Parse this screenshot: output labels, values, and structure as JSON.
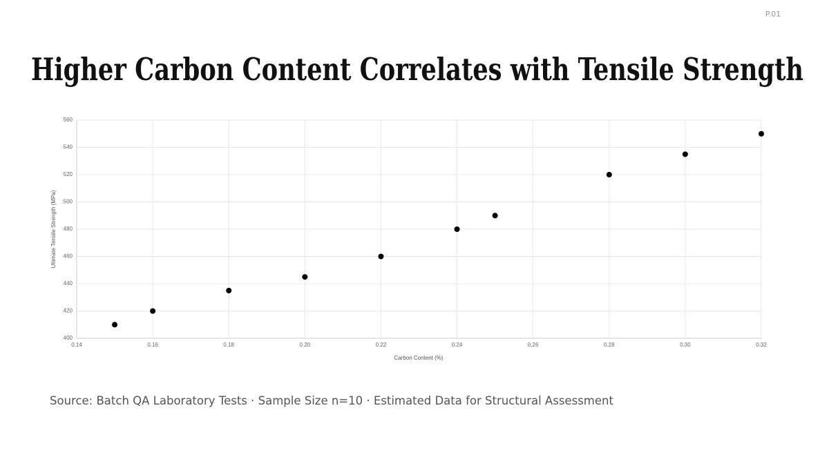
{
  "page_label": "P.01",
  "chart_data": {
    "type": "scatter",
    "title": "Higher Carbon Content Correlates with Tensile Strength",
    "x_label": "Carbon Content (%)",
    "y_label": "Ultimate Tensile Strength (MPa)",
    "source": "Source: Batch QA Laboratory Tests · Sample Size n=10 · Estimated Data for Structural Assessment",
    "x": [
      0.15,
      0.16,
      0.18,
      0.2,
      0.22,
      0.24,
      0.25,
      0.28,
      0.3,
      0.32
    ],
    "values": [
      410,
      420,
      435,
      445,
      460,
      480,
      490,
      520,
      535,
      550
    ],
    "color": "#000000",
    "xlim": [
      0.14,
      0.32
    ],
    "xticks": [
      0.14,
      0.16,
      0.18,
      {
        "value": 0.2,
        "label": "0.20"
      },
      0.22,
      0.24,
      0.26,
      0.28,
      {
        "value": 0.3,
        "label": "0.30"
      },
      0.32
    ],
    "ylim": [
      400,
      560
    ],
    "yticks": [
      400,
      420,
      440,
      460,
      480,
      500,
      520,
      540,
      560
    ],
    "grid": true
  }
}
